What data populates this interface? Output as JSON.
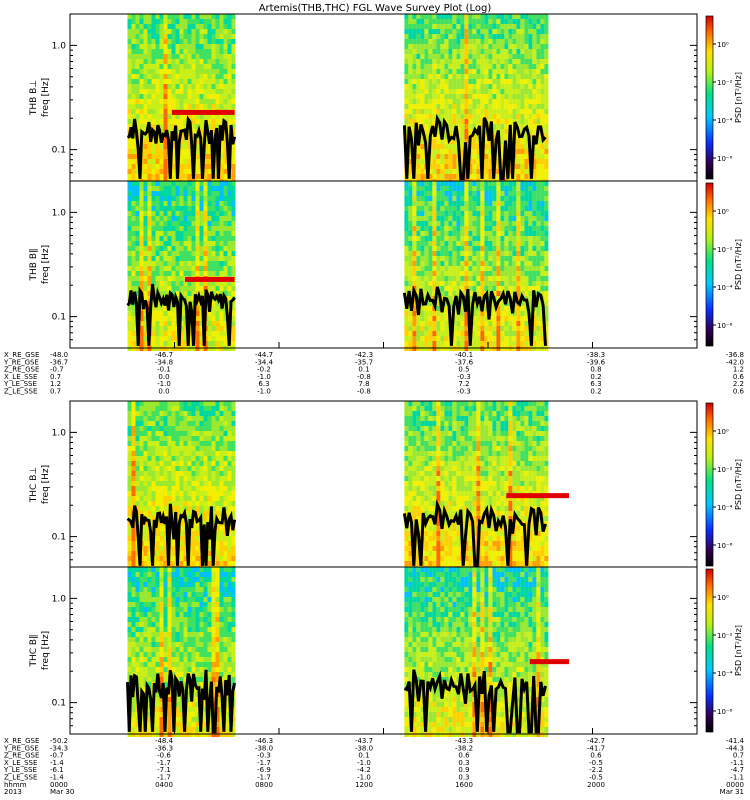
{
  "title": "Artemis(THB,THC) FGL Wave Survey Plot (Log)",
  "chart_data": {
    "type": "heatmap",
    "yscale": "log",
    "yticks": [
      {
        "v": 1.0,
        "label": "1.0"
      },
      {
        "v": 0.1,
        "label": "0.1"
      }
    ],
    "panels": [
      {
        "id": "thb-bl",
        "ylabel1": "THB B⊥",
        "ylabel2": "freq [Hz]",
        "colorbar_label": "PSD [nT²/Hz]",
        "cb_ticks": [
          "10⁰",
          "10⁻²",
          "10⁻⁴",
          "10⁻⁶"
        ],
        "red_line": {
          "y": 0.23,
          "x0": 3.9,
          "x1": 6.3
        }
      },
      {
        "id": "thb-bp",
        "ylabel1": "THB B∥",
        "ylabel2": "freq [Hz]",
        "colorbar_label": "PSD [nT²/Hz]",
        "cb_ticks": [
          "10⁰",
          "10⁻²",
          "10⁻⁴",
          "10⁻⁶"
        ],
        "red_line": {
          "y": 0.23,
          "x0": 4.4,
          "x1": 6.3
        }
      },
      {
        "id": "thc-bl",
        "ylabel1": "THC B⊥",
        "ylabel2": "freq [Hz]",
        "colorbar_label": "PSD [nT²/Hz]",
        "cb_ticks": [
          "10⁰",
          "10⁻²",
          "10⁻⁴",
          "10⁻⁶"
        ],
        "red_line": {
          "y": 0.25,
          "x0": 16.7,
          "x1": 19.1
        }
      },
      {
        "id": "thc-bp",
        "ylabel1": "THC B∥",
        "ylabel2": "freq [Hz]",
        "colorbar_label": "PSD [nT²/Hz]",
        "cb_ticks": [
          "10⁰",
          "10⁻²",
          "10⁻⁴",
          "10⁻⁶"
        ],
        "red_line": {
          "y": 0.25,
          "x0": 17.6,
          "x1": 19.1
        }
      }
    ],
    "data_intervals_hours": [
      [
        2.2,
        6.3
      ],
      [
        12.8,
        18.2
      ]
    ],
    "black_curve_freq_hz": [
      0.15,
      0.14,
      0.16,
      0.12,
      0.18,
      0.16,
      0.11,
      0.17,
      0.15,
      0.13
    ],
    "xlim_hours": [
      0,
      24
    ]
  },
  "ephem_table_top": {
    "labels": [
      "X_RE_GSE",
      "Y_RE_GSE",
      "Z_RE_GSE",
      "X_LE_SSE",
      "Y_LE_SSE",
      "Z_LE_SSE"
    ],
    "columns": [
      [
        "-48.0",
        "-36.7",
        "-0.7",
        "0.7",
        "1.2",
        "0.7"
      ],
      [
        "-46.7",
        "-34.8",
        "-0.1",
        "0.0",
        "-1.0",
        "0.0"
      ],
      [
        "-44.7",
        "-34.4",
        "-0.2",
        "-1.0",
        "6.3",
        "-1.0"
      ],
      [
        "-42.3",
        "-35.7",
        "0.1",
        "-0.8",
        "7.8",
        "-0.8"
      ],
      [
        "-40.1",
        "-37.6",
        "0.5",
        "-0.3",
        "7.2",
        "-0.3"
      ],
      [
        "-38.3",
        "-39.6",
        "0.8",
        "0.2",
        "6.3",
        "0.2"
      ],
      [
        "-36.8",
        "-42.0",
        "1.2",
        "0.6",
        "2.2",
        "0.6"
      ]
    ]
  },
  "ephem_table_bottom": {
    "labels": [
      "X_RE_GSE",
      "Y_RE_GSE",
      "Z_RE_GSE",
      "X_LE_SSE",
      "Y_LE_SSE",
      "Z_LE_SSE",
      "hhmm",
      "2013"
    ],
    "columns": [
      [
        "-50.2",
        "-34.3",
        "-0.7",
        "-1.4",
        "-6.1",
        "-1.4",
        "0000",
        "Mar 30"
      ],
      [
        "-48.4",
        "-36.3",
        "-0.6",
        "-1.7",
        "-7.1",
        "-1.7",
        "0400",
        ""
      ],
      [
        "-46.3",
        "-38.0",
        "-0.3",
        "-1.7",
        "-6.9",
        "-1.7",
        "0800",
        ""
      ],
      [
        "-43.7",
        "-38.0",
        "0.1",
        "-1.0",
        "-4.2",
        "-1.0",
        "1200",
        ""
      ],
      [
        "-43.3",
        "-38.2",
        "0.6",
        "0.3",
        "0.9",
        "0.3",
        "1600",
        ""
      ],
      [
        "-42.7",
        "-41.7",
        "0.6",
        "-0.5",
        "-2.2",
        "-0.5",
        "2000",
        ""
      ],
      [
        "-41.4",
        "-44.3",
        "0.7",
        "-1.1",
        "-4.7",
        "-1.1",
        "0000",
        "Mar 31"
      ]
    ]
  }
}
